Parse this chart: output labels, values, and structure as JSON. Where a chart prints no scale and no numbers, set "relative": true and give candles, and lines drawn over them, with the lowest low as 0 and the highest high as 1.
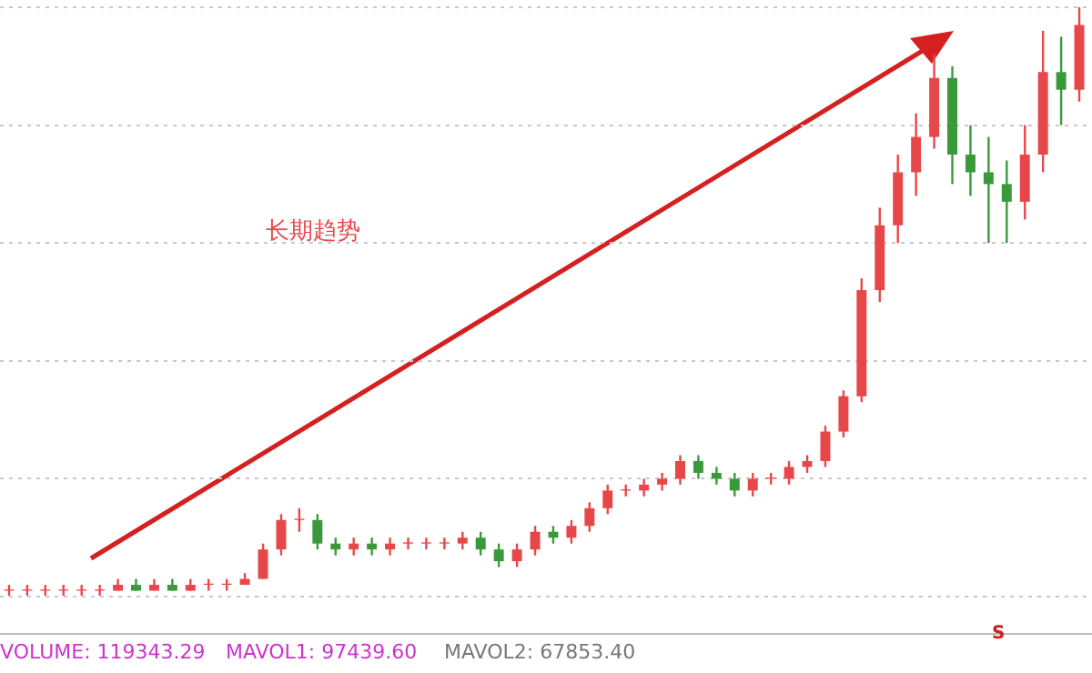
{
  "chart_data": {
    "type": "candlestick",
    "relative": true,
    "grid": "y",
    "legend": false,
    "categories": [
      null,
      null,
      null,
      null,
      null,
      null,
      null,
      null,
      null,
      null,
      null,
      null,
      null,
      null,
      null,
      null,
      null,
      null,
      null,
      null,
      null,
      null,
      null,
      null,
      null,
      null,
      null,
      null,
      null,
      null,
      null,
      null,
      null,
      null,
      null,
      null,
      null,
      null,
      null,
      null,
      null,
      null,
      null,
      null,
      null,
      null,
      null,
      null,
      null,
      null,
      null,
      null,
      null,
      null,
      null,
      null,
      null,
      null,
      null,
      null
    ],
    "series": [
      {
        "colors": [
          "#e8474a",
          "#e8474a",
          "#e8474a",
          "#e8474a",
          "#e8474a",
          "#e8474a",
          "#e8474a",
          "#3a9a3a",
          "#e8474a",
          "#3a9a3a",
          "#e8474a",
          "#e8474a",
          "#e8474a",
          "#e8474a",
          "#e8474a",
          "#e8474a",
          "#e8474a",
          "#3a9a3a",
          "#3a9a3a",
          "#e8474a",
          "#3a9a3a",
          "#e8474a",
          "#e8474a",
          "#e8474a",
          "#e8474a",
          "#e8474a",
          "#3a9a3a",
          "#3a9a3a",
          "#e8474a",
          "#e8474a",
          "#3a9a3a",
          "#e8474a",
          "#e8474a",
          "#e8474a",
          "#e8474a",
          "#e8474a",
          "#e8474a",
          "#e8474a",
          "#3a9a3a",
          "#3a9a3a",
          "#3a9a3a",
          "#e8474a",
          "#e8474a",
          "#e8474a",
          "#e8474a",
          "#e8474a",
          "#e8474a",
          "#e8474a",
          "#e8474a",
          "#e8474a",
          "#e8474a",
          "#e8474a",
          "#3a9a3a",
          "#3a9a3a",
          "#3a9a3a",
          "#3a9a3a",
          "#e8474a",
          "#e8474a",
          "#3a9a3a",
          "#e8474a"
        ],
        "ohlc": [
          [
            0.01,
            0.02,
            0,
            0.01
          ],
          [
            0.01,
            0.02,
            0,
            0.01
          ],
          [
            0.01,
            0.02,
            0,
            0.01
          ],
          [
            0.01,
            0.02,
            0,
            0.01
          ],
          [
            0.01,
            0.02,
            0,
            0.01
          ],
          [
            0.01,
            0.02,
            0,
            0.01
          ],
          [
            0.01,
            0.03,
            0.01,
            0.02
          ],
          [
            0.02,
            0.03,
            0.01,
            0.01
          ],
          [
            0.01,
            0.03,
            0.01,
            0.02
          ],
          [
            0.02,
            0.03,
            0.01,
            0.01
          ],
          [
            0.01,
            0.03,
            0.01,
            0.02
          ],
          [
            0.02,
            0.03,
            0.01,
            0.02
          ],
          [
            0.02,
            0.03,
            0.01,
            0.02
          ],
          [
            0.02,
            0.04,
            0.02,
            0.03
          ],
          [
            0.03,
            0.09,
            0.03,
            0.08
          ],
          [
            0.08,
            0.14,
            0.07,
            0.13
          ],
          [
            0.13,
            0.15,
            0.11,
            0.13
          ],
          [
            0.13,
            0.14,
            0.08,
            0.09
          ],
          [
            0.09,
            0.1,
            0.07,
            0.08
          ],
          [
            0.08,
            0.1,
            0.07,
            0.09
          ],
          [
            0.09,
            0.1,
            0.07,
            0.08
          ],
          [
            0.08,
            0.1,
            0.07,
            0.09
          ],
          [
            0.09,
            0.1,
            0.08,
            0.09
          ],
          [
            0.09,
            0.1,
            0.08,
            0.09
          ],
          [
            0.09,
            0.1,
            0.08,
            0.09
          ],
          [
            0.09,
            0.11,
            0.08,
            0.1
          ],
          [
            0.1,
            0.11,
            0.07,
            0.08
          ],
          [
            0.08,
            0.09,
            0.05,
            0.06
          ],
          [
            0.06,
            0.09,
            0.05,
            0.08
          ],
          [
            0.08,
            0.12,
            0.07,
            0.11
          ],
          [
            0.11,
            0.12,
            0.09,
            0.1
          ],
          [
            0.1,
            0.13,
            0.09,
            0.12
          ],
          [
            0.12,
            0.16,
            0.11,
            0.15
          ],
          [
            0.15,
            0.19,
            0.14,
            0.18
          ],
          [
            0.18,
            0.19,
            0.17,
            0.18
          ],
          [
            0.18,
            0.2,
            0.17,
            0.19
          ],
          [
            0.19,
            0.21,
            0.18,
            0.2
          ],
          [
            0.2,
            0.24,
            0.19,
            0.23
          ],
          [
            0.23,
            0.24,
            0.2,
            0.21
          ],
          [
            0.21,
            0.22,
            0.19,
            0.2
          ],
          [
            0.2,
            0.21,
            0.17,
            0.18
          ],
          [
            0.18,
            0.21,
            0.17,
            0.2
          ],
          [
            0.2,
            0.21,
            0.19,
            0.2
          ],
          [
            0.2,
            0.23,
            0.19,
            0.22
          ],
          [
            0.22,
            0.24,
            0.21,
            0.23
          ],
          [
            0.23,
            0.29,
            0.22,
            0.28
          ],
          [
            0.28,
            0.35,
            0.27,
            0.34
          ],
          [
            0.34,
            0.54,
            0.33,
            0.52
          ],
          [
            0.52,
            0.66,
            0.5,
            0.63
          ],
          [
            0.63,
            0.75,
            0.6,
            0.72
          ],
          [
            0.72,
            0.82,
            0.68,
            0.78
          ],
          [
            0.78,
            0.92,
            0.76,
            0.88
          ],
          [
            0.88,
            0.9,
            0.7,
            0.75
          ],
          [
            0.75,
            0.8,
            0.68,
            0.72
          ],
          [
            0.72,
            0.78,
            0.6,
            0.7
          ],
          [
            0.7,
            0.74,
            0.6,
            0.67
          ],
          [
            0.67,
            0.8,
            0.64,
            0.75
          ],
          [
            0.75,
            0.96,
            0.72,
            0.89
          ],
          [
            0.89,
            0.95,
            0.8,
            0.86
          ],
          [
            0.86,
            1,
            0.84,
            0.97
          ]
        ]
      }
    ],
    "annotations": [
      "长期趋势",
      "S",
      "VOLUME: 119343.29",
      "MAVOL1: 97439.60",
      "MAVOL2: 67853.40"
    ]
  }
}
